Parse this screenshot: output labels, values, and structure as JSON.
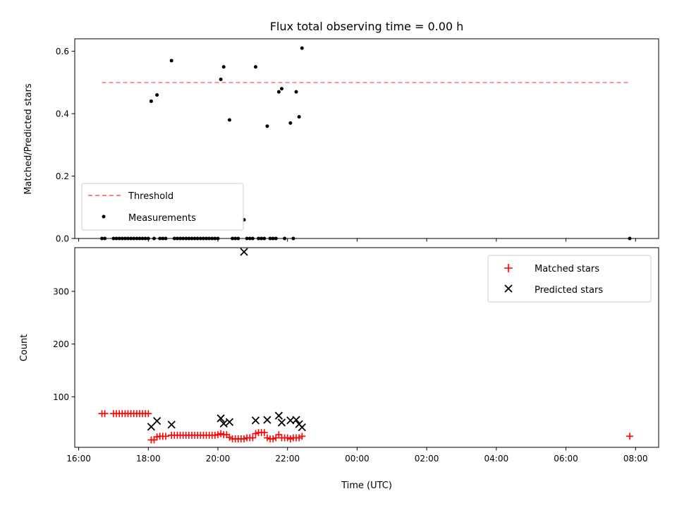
{
  "chart_data": {
    "title": "Flux total observing time = 0.00 h",
    "xlabel": "Time (UTC)",
    "x_ticks": [
      "16:00",
      "18:00",
      "20:00",
      "22:00",
      "00:00",
      "02:00",
      "04:00",
      "06:00",
      "08:00"
    ],
    "panels": [
      {
        "type": "scatter",
        "ylabel": "Matched/Predicted stars",
        "ylim": [
          0,
          0.64
        ],
        "y_ticks": [
          "0.0",
          "0.2",
          "0.4",
          "0.6"
        ],
        "legend": {
          "position": "lower-left",
          "entries": [
            "Threshold",
            "Measurements"
          ]
        },
        "threshold": {
          "name": "Threshold",
          "value": 0.5,
          "x_range": [
            "16:40",
            "07:50"
          ],
          "color": "#ff7f7f"
        },
        "series": [
          {
            "name": "Measurements",
            "color": "#000000",
            "points": [
              [
                "18:05",
                0.44
              ],
              [
                "18:15",
                0.46
              ],
              [
                "18:40",
                0.57
              ],
              [
                "20:05",
                0.51
              ],
              [
                "20:10",
                0.55
              ],
              [
                "20:20",
                0.38
              ],
              [
                "20:45",
                0.06
              ],
              [
                "21:05",
                0.55
              ],
              [
                "21:25",
                0.36
              ],
              [
                "21:45",
                0.47
              ],
              [
                "21:50",
                0.48
              ],
              [
                "22:05",
                0.37
              ],
              [
                "22:15",
                0.47
              ],
              [
                "22:20",
                0.39
              ],
              [
                "22:25",
                0.61
              ],
              [
                "16:40",
                0
              ],
              [
                "16:45",
                0
              ],
              [
                "17:00",
                0
              ],
              [
                "17:05",
                0
              ],
              [
                "17:10",
                0
              ],
              [
                "17:15",
                0
              ],
              [
                "17:20",
                0
              ],
              [
                "17:25",
                0
              ],
              [
                "17:30",
                0
              ],
              [
                "17:35",
                0
              ],
              [
                "17:40",
                0
              ],
              [
                "17:45",
                0
              ],
              [
                "17:50",
                0
              ],
              [
                "17:55",
                0
              ],
              [
                "18:00",
                0
              ],
              [
                "18:10",
                0
              ],
              [
                "18:20",
                0
              ],
              [
                "18:25",
                0
              ],
              [
                "18:30",
                0
              ],
              [
                "18:45",
                0
              ],
              [
                "18:50",
                0
              ],
              [
                "18:55",
                0
              ],
              [
                "19:00",
                0
              ],
              [
                "19:05",
                0
              ],
              [
                "19:10",
                0
              ],
              [
                "19:15",
                0
              ],
              [
                "19:20",
                0
              ],
              [
                "19:25",
                0
              ],
              [
                "19:30",
                0
              ],
              [
                "19:35",
                0
              ],
              [
                "19:40",
                0
              ],
              [
                "19:45",
                0
              ],
              [
                "19:50",
                0
              ],
              [
                "19:55",
                0
              ],
              [
                "20:00",
                0
              ],
              [
                "20:25",
                0
              ],
              [
                "20:30",
                0
              ],
              [
                "20:35",
                0
              ],
              [
                "20:50",
                0
              ],
              [
                "20:55",
                0
              ],
              [
                "21:00",
                0
              ],
              [
                "21:10",
                0
              ],
              [
                "21:15",
                0
              ],
              [
                "21:20",
                0
              ],
              [
                "21:30",
                0
              ],
              [
                "21:35",
                0
              ],
              [
                "21:40",
                0
              ],
              [
                "21:55",
                0
              ],
              [
                "22:10",
                0
              ],
              [
                "07:50",
                0
              ]
            ]
          }
        ]
      },
      {
        "type": "scatter",
        "ylabel": "Count",
        "ylim": [
          4,
          383
        ],
        "y_ticks": [
          "100",
          "200",
          "300"
        ],
        "legend": {
          "position": "upper-right",
          "entries": [
            "Matched stars",
            "Predicted stars"
          ]
        },
        "series": [
          {
            "name": "Matched stars",
            "color": "#ff0000",
            "marker": "plus",
            "points": [
              [
                "16:40",
                68
              ],
              [
                "16:45",
                68
              ],
              [
                "17:00",
                68
              ],
              [
                "17:05",
                68
              ],
              [
                "17:10",
                68
              ],
              [
                "17:15",
                68
              ],
              [
                "17:20",
                68
              ],
              [
                "17:25",
                68
              ],
              [
                "17:30",
                68
              ],
              [
                "17:35",
                68
              ],
              [
                "17:40",
                68
              ],
              [
                "17:45",
                68
              ],
              [
                "17:50",
                68
              ],
              [
                "17:55",
                68
              ],
              [
                "18:00",
                68
              ],
              [
                "18:05",
                18
              ],
              [
                "18:10",
                18
              ],
              [
                "18:15",
                24
              ],
              [
                "18:20",
                25
              ],
              [
                "18:25",
                25
              ],
              [
                "18:30",
                25
              ],
              [
                "18:40",
                27
              ],
              [
                "18:45",
                27
              ],
              [
                "18:50",
                27
              ],
              [
                "18:55",
                27
              ],
              [
                "19:00",
                27
              ],
              [
                "19:05",
                27
              ],
              [
                "19:10",
                27
              ],
              [
                "19:15",
                27
              ],
              [
                "19:20",
                27
              ],
              [
                "19:25",
                27
              ],
              [
                "19:30",
                27
              ],
              [
                "19:35",
                27
              ],
              [
                "19:40",
                27
              ],
              [
                "19:45",
                27
              ],
              [
                "19:50",
                27
              ],
              [
                "19:55",
                27
              ],
              [
                "20:00",
                28
              ],
              [
                "20:05",
                30
              ],
              [
                "20:10",
                28
              ],
              [
                "20:15",
                28
              ],
              [
                "20:20",
                23
              ],
              [
                "20:25",
                20
              ],
              [
                "20:30",
                20
              ],
              [
                "20:35",
                20
              ],
              [
                "20:40",
                20
              ],
              [
                "20:45",
                20
              ],
              [
                "20:50",
                22
              ],
              [
                "20:55",
                22
              ],
              [
                "21:00",
                22
              ],
              [
                "21:05",
                30
              ],
              [
                "21:10",
                32
              ],
              [
                "21:15",
                32
              ],
              [
                "21:20",
                32
              ],
              [
                "21:25",
                22
              ],
              [
                "21:30",
                20
              ],
              [
                "21:35",
                20
              ],
              [
                "21:40",
                22
              ],
              [
                "21:45",
                28
              ],
              [
                "21:50",
                22
              ],
              [
                "21:55",
                22
              ],
              [
                "22:00",
                22
              ],
              [
                "22:05",
                20
              ],
              [
                "22:10",
                22
              ],
              [
                "22:15",
                22
              ],
              [
                "22:20",
                22
              ],
              [
                "22:25",
                25
              ],
              [
                "07:50",
                25
              ]
            ]
          },
          {
            "name": "Predicted stars",
            "color": "#000000",
            "marker": "x",
            "points": [
              [
                "18:05",
                43
              ],
              [
                "18:15",
                54
              ],
              [
                "18:40",
                47
              ],
              [
                "20:05",
                59
              ],
              [
                "20:10",
                49
              ],
              [
                "20:20",
                52
              ],
              [
                "20:45",
                375
              ],
              [
                "21:05",
                55
              ],
              [
                "21:25",
                56
              ],
              [
                "21:45",
                64
              ],
              [
                "21:50",
                51
              ],
              [
                "22:05",
                55
              ],
              [
                "22:15",
                56
              ],
              [
                "22:20",
                48
              ],
              [
                "22:25",
                42
              ]
            ]
          }
        ]
      }
    ]
  }
}
